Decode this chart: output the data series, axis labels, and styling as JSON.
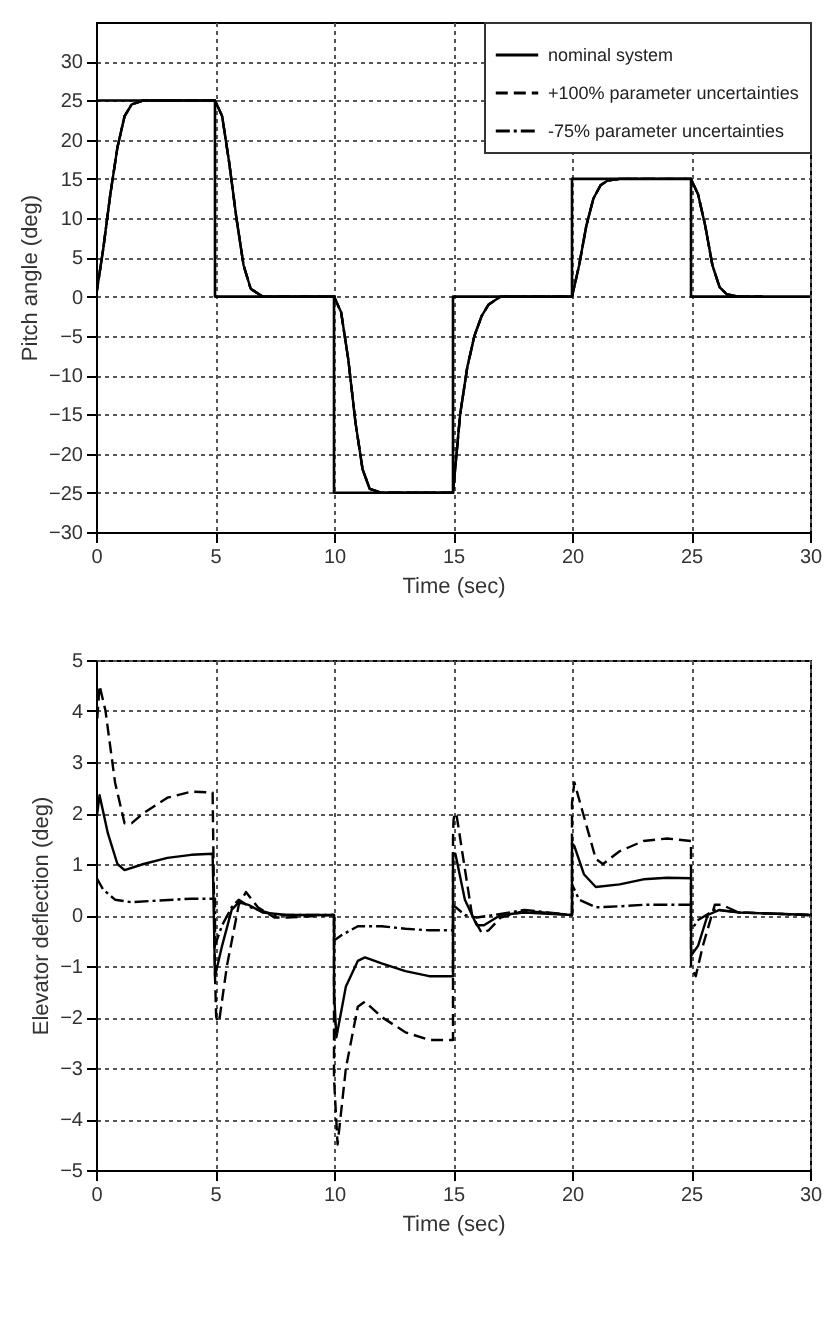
{
  "chart_data": [
    {
      "type": "line",
      "xlabel": "Time (sec)",
      "ylabel": "Pitch angle (deg)",
      "xlim": [
        0,
        30
      ],
      "xticks": [
        0,
        5,
        10,
        15,
        20,
        25,
        30
      ],
      "ylim": [
        -30,
        35
      ],
      "yticks": [
        -30,
        -25,
        -20,
        -15,
        -10,
        -5,
        0,
        5,
        10,
        15,
        20,
        25,
        30
      ],
      "grid": true,
      "legend": "top right",
      "series": [
        {
          "color": "#000000",
          "line_style": "solid",
          "x": [
            0,
            0,
            5,
            5,
            10,
            10,
            15,
            15,
            20,
            20,
            25,
            25,
            30
          ],
          "values": [
            0,
            25,
            25,
            0,
            0,
            -25,
            -25,
            0,
            0,
            15,
            15,
            0,
            0
          ]
        },
        {
          "name": "nominal system",
          "color": "#000000",
          "line_style": "solid",
          "x": [
            0,
            0.3,
            0.6,
            0.9,
            1.2,
            1.5,
            2,
            5,
            5.3,
            5.6,
            5.9,
            6.2,
            6.5,
            7,
            10,
            10.3,
            10.6,
            10.9,
            11.2,
            11.5,
            12,
            15,
            15.3,
            15.6,
            15.9,
            16.2,
            16.5,
            17,
            20,
            20.3,
            20.6,
            20.9,
            21.2,
            21.5,
            22,
            25,
            25.3,
            25.6,
            25.9,
            26.2,
            26.5,
            27,
            28
          ],
          "values": [
            0,
            6,
            13,
            19,
            23,
            24.5,
            25,
            25,
            23,
            17,
            10,
            4,
            1,
            0,
            0,
            -2,
            -8,
            -16,
            -22,
            -24.5,
            -25,
            -25,
            -15,
            -9,
            -5,
            -2.5,
            -1,
            0,
            0,
            4,
            9,
            12.5,
            14.2,
            14.8,
            15,
            15,
            13,
            9,
            4,
            1.2,
            0.3,
            0,
            0
          ]
        },
        {
          "name": "+100% parameter uncertainties",
          "color": "#000000",
          "line_style": "dashed",
          "x": [
            0,
            0.3,
            0.6,
            0.9,
            1.2,
            1.5,
            2,
            5,
            5.3,
            5.6,
            5.9,
            6.2,
            6.5,
            7,
            10,
            10.3,
            10.6,
            10.9,
            11.2,
            11.5,
            12,
            15,
            15.3,
            15.6,
            15.9,
            16.2,
            16.5,
            17,
            20,
            20.3,
            20.6,
            20.9,
            21.2,
            21.5,
            22,
            25,
            25.3,
            25.6,
            25.9,
            26.2,
            26.5,
            27,
            28
          ],
          "values": [
            0,
            6,
            13,
            19,
            23,
            24.5,
            25,
            25,
            23,
            17,
            10,
            4,
            1,
            0,
            0,
            -2,
            -8,
            -16,
            -22,
            -24.5,
            -25,
            -25,
            -15,
            -9,
            -5,
            -2.5,
            -1,
            0,
            0,
            4,
            9,
            12.5,
            14.2,
            14.8,
            15,
            15,
            13,
            9,
            4,
            1.2,
            0.3,
            0,
            0
          ]
        },
        {
          "name": "-75% parameter uncertainties",
          "color": "#000000",
          "line_style": "dashdot",
          "x": [
            0,
            0.3,
            0.6,
            0.9,
            1.2,
            1.5,
            2,
            5,
            5.3,
            5.6,
            5.9,
            6.2,
            6.5,
            7,
            10,
            10.3,
            10.6,
            10.9,
            11.2,
            11.5,
            12,
            15,
            15.3,
            15.6,
            15.9,
            16.2,
            16.5,
            17,
            20,
            20.3,
            20.6,
            20.9,
            21.2,
            21.5,
            22,
            25,
            25.3,
            25.6,
            25.9,
            26.2,
            26.5,
            27,
            28
          ],
          "values": [
            0,
            6,
            13,
            19,
            23,
            24.5,
            25,
            25,
            23,
            17,
            10,
            4,
            1,
            0,
            0,
            -2,
            -8,
            -16,
            -22,
            -24.5,
            -25,
            -25,
            -15,
            -9,
            -5,
            -2.5,
            -1,
            0,
            0,
            4,
            9,
            12.5,
            14.2,
            14.8,
            15,
            15,
            13,
            9,
            4,
            1.2,
            0.3,
            0,
            0
          ]
        }
      ]
    },
    {
      "type": "line",
      "xlabel": "Time (sec)",
      "ylabel": "Elevator deflection (deg)",
      "xlim": [
        0,
        30
      ],
      "xticks": [
        0,
        5,
        10,
        15,
        20,
        25,
        30
      ],
      "ylim": [
        -5,
        5
      ],
      "yticks": [
        -5,
        -4,
        -3,
        -2,
        -1,
        0,
        1,
        2,
        3,
        4,
        5
      ],
      "grid": true,
      "legend": "top right",
      "series": [
        {
          "name": "nominal system",
          "color": "#000000",
          "line_style": "solid",
          "x": [
            0,
            0.15,
            0.5,
            0.9,
            1.2,
            2,
            3,
            4,
            4.9,
            5,
            5.3,
            5.7,
            6,
            6.4,
            7,
            8,
            10,
            10,
            10.1,
            10.5,
            11,
            11.3,
            12,
            13,
            14,
            15,
            15,
            15.1,
            15.5,
            16,
            16.3,
            17,
            18,
            20,
            20,
            20.1,
            20.5,
            21,
            22,
            23,
            24,
            25,
            25,
            25.3,
            25.7,
            26.2,
            27,
            30
          ],
          "values": [
            1.8,
            2.35,
            1.6,
            1,
            0.88,
            1,
            1.12,
            1.18,
            1.2,
            -1.2,
            -0.6,
            0.1,
            0.25,
            0.2,
            0.05,
            0,
            0,
            -1.5,
            -2.4,
            -1.4,
            -0.9,
            -0.83,
            -0.95,
            -1.1,
            -1.2,
            -1.2,
            1.2,
            1.2,
            0.3,
            -0.2,
            -0.2,
            0,
            0.05,
            0,
            1.4,
            1.35,
            0.8,
            0.55,
            0.6,
            0.7,
            0.73,
            0.72,
            -0.8,
            -0.6,
            0,
            0.1,
            0.05,
            0
          ]
        },
        {
          "name": "+100% parameter uncertainties",
          "color": "#000000",
          "line_style": "dashed",
          "x": [
            0,
            0.15,
            0.4,
            0.8,
            1.2,
            1.5,
            2,
            3,
            4,
            4.9,
            5,
            5.05,
            5.12,
            5.2,
            5.5,
            6,
            6.3,
            6.8,
            7.5,
            8,
            10,
            10,
            10.15,
            10.5,
            11,
            11.3,
            12,
            13,
            14,
            15,
            15,
            15.02,
            15.06,
            15.1,
            15.15,
            15.22,
            15.4,
            15.8,
            16.2,
            16.5,
            17,
            18,
            20,
            20,
            20.1,
            20.4,
            21,
            21.3,
            22,
            23,
            24,
            25,
            25,
            25.2,
            25.5,
            26,
            26.3,
            27,
            30
          ],
          "values": [
            3.5,
            4.5,
            4,
            2.6,
            1.8,
            1.8,
            2,
            2.3,
            2.42,
            2.4,
            -1.2,
            -2,
            -2.1,
            -2,
            -1,
            0.2,
            0.45,
            0.15,
            -0.05,
            -0.05,
            0,
            -3.2,
            -4.5,
            -3,
            -1.8,
            -1.7,
            -2,
            -2.3,
            -2.45,
            -2.45,
            1.5,
            1.85,
            1.97,
            2,
            1.95,
            1.75,
            1.2,
            0,
            -0.35,
            -0.3,
            -0.05,
            0.08,
            0,
            2.2,
            2.6,
            2.1,
            1.1,
            1,
            1.25,
            1.45,
            1.5,
            1.45,
            -1,
            -1.2,
            -0.6,
            0.2,
            0.2,
            0.05,
            0
          ]
        },
        {
          "name": "-75% parameter uncertainties",
          "color": "#000000",
          "line_style": "dashdot",
          "x": [
            0,
            0.3,
            0.8,
            1.5,
            2.5,
            4,
            5,
            5,
            5.3,
            5.7,
            6,
            6.5,
            7.5,
            10,
            10,
            10.3,
            11,
            12,
            13,
            14,
            15,
            15,
            15.5,
            16,
            17,
            18,
            20,
            20,
            20.3,
            21,
            22,
            23,
            24,
            25,
            25,
            25.3,
            26,
            27,
            30
          ],
          "values": [
            0.75,
            0.5,
            0.3,
            0.25,
            0.28,
            0.32,
            0.32,
            -0.6,
            -0.2,
            0.15,
            0.3,
            0.15,
            0,
            0,
            -0.5,
            -0.4,
            -0.22,
            -0.22,
            -0.27,
            -0.3,
            -0.3,
            0.2,
            0,
            -0.05,
            0.02,
            0.1,
            0,
            0.6,
            0.3,
            0.15,
            0.17,
            0.2,
            0.2,
            0.2,
            -0.3,
            -0.1,
            0.1,
            0.05,
            0
          ]
        }
      ]
    }
  ]
}
